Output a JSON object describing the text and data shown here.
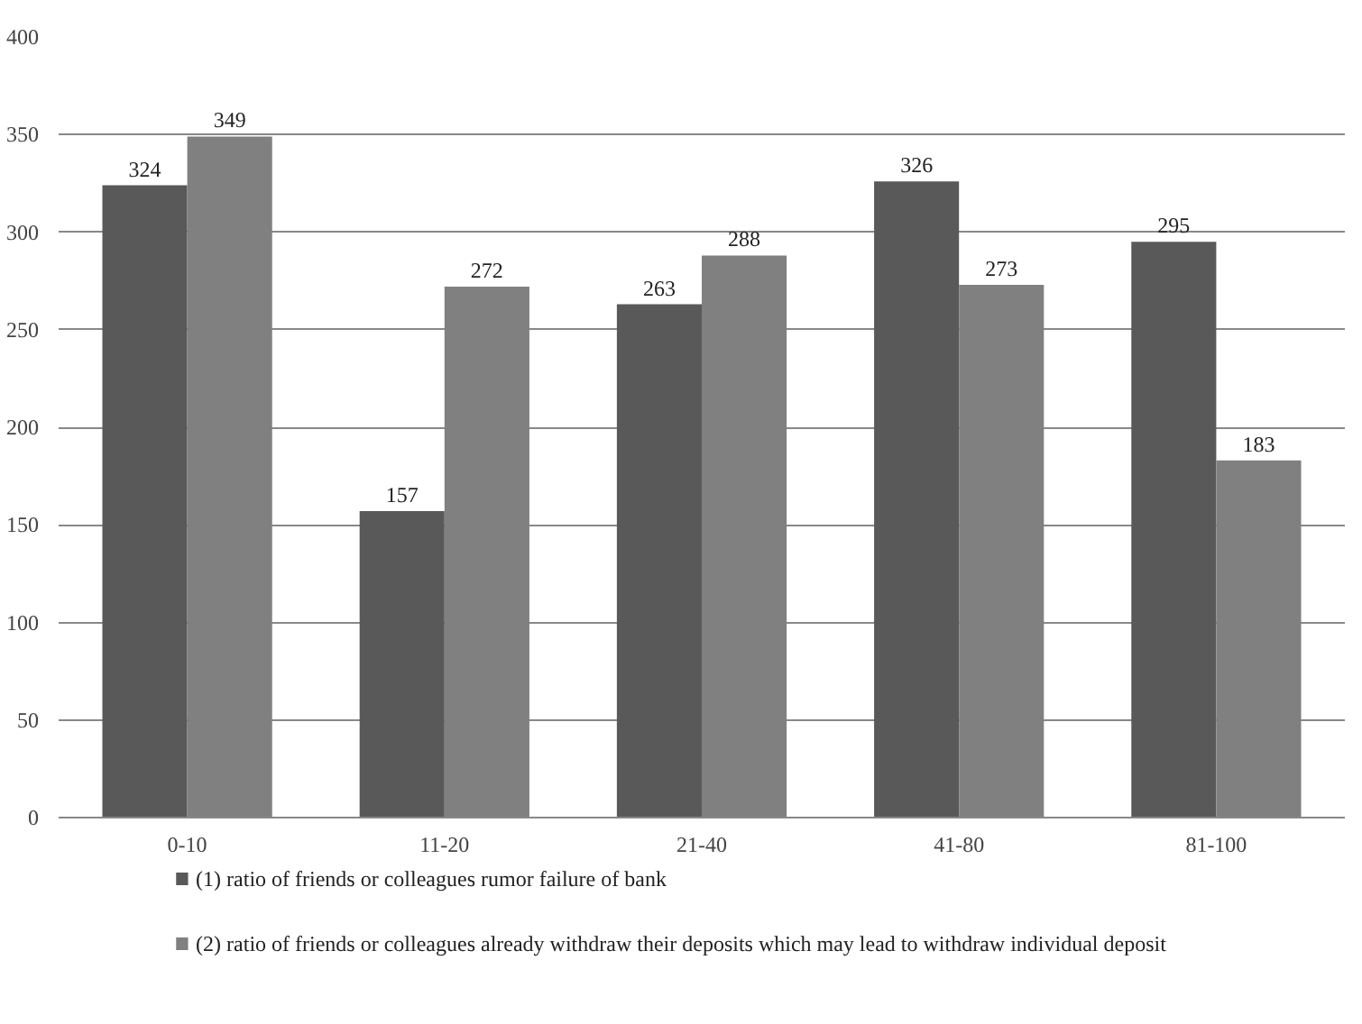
{
  "chart_data": {
    "type": "bar",
    "categories": [
      "0-10",
      "11-20",
      "21-40",
      "41-80",
      "81-100"
    ],
    "series": [
      {
        "name": "(1) ratio of friends or colleagues rumor failure of bank",
        "color": "#595959",
        "values": [
          324,
          157,
          263,
          326,
          295
        ]
      },
      {
        "name": "(2) ratio of friends or colleagues already withdraw their deposits which may lead to withdraw individual deposit",
        "color": "#808080",
        "values": [
          349,
          272,
          288,
          273,
          183
        ]
      }
    ],
    "ylim": [
      0,
      400
    ],
    "yticks": [
      0,
      50,
      100,
      150,
      200,
      250,
      300,
      350,
      400
    ],
    "grid": "y",
    "legend": "bottom",
    "data_labels": true
  }
}
